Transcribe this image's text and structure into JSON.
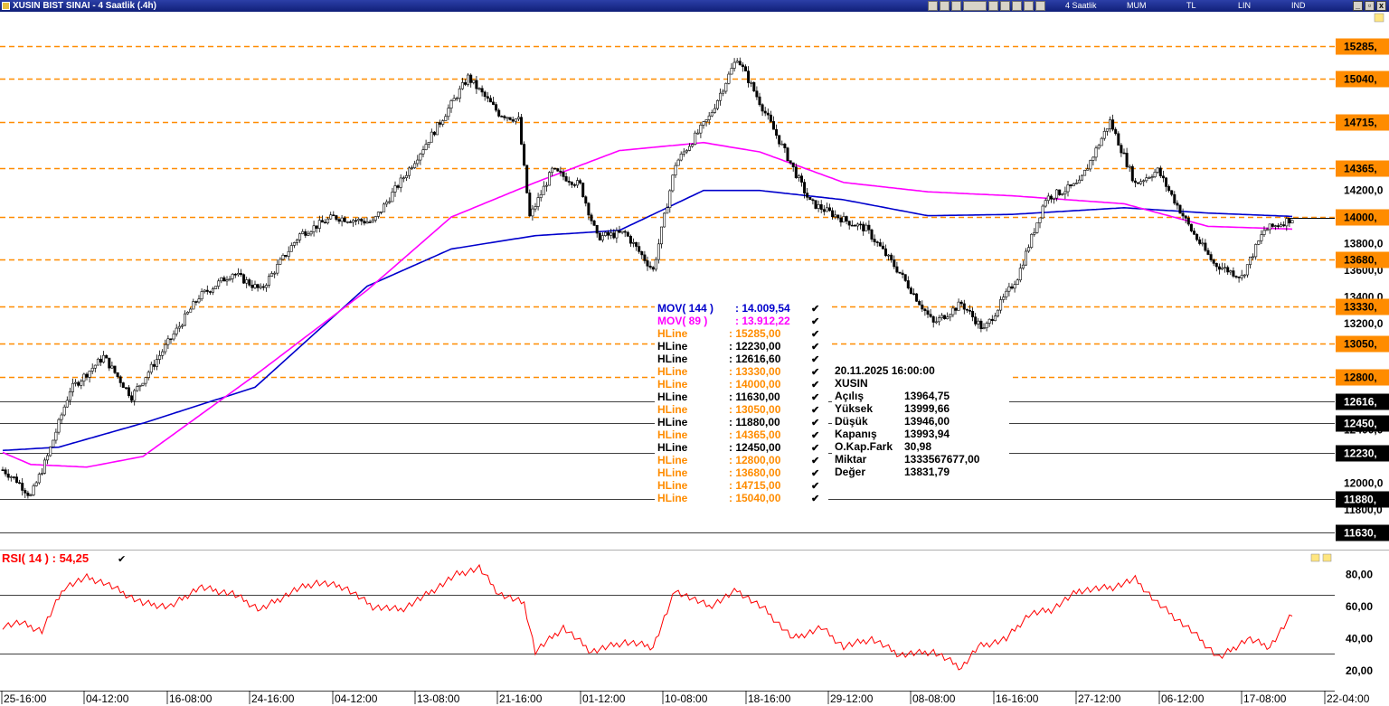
{
  "window": {
    "title": "XUSIN BIST SINAI - 4 Saatlik (.4h)",
    "toolbar_labels": [
      "4 Saatlik",
      "MUM",
      "TL",
      "LIN",
      "IND"
    ]
  },
  "price_axis": {
    "labels": [
      "14200,0",
      "13800,0",
      "13600,0",
      "13400,0",
      "13200,0",
      "12400,0",
      "12000,0",
      "11800,0"
    ]
  },
  "hlines": [
    {
      "label": "15285,",
      "value": 15285,
      "color": "#ff8c00"
    },
    {
      "label": "15040,",
      "value": 15040,
      "color": "#ff8c00"
    },
    {
      "label": "14715,",
      "value": 14715,
      "color": "#ff8c00"
    },
    {
      "label": "14365,",
      "value": 14365,
      "color": "#ff8c00"
    },
    {
      "label": "14000,",
      "value": 14000,
      "color": "#ff8c00"
    },
    {
      "label": "13680,",
      "value": 13680,
      "color": "#ff8c00"
    },
    {
      "label": "13330,",
      "value": 13330,
      "color": "#ff8c00"
    },
    {
      "label": "13050,",
      "value": 13050,
      "color": "#ff8c00"
    },
    {
      "label": "12800,",
      "value": 12800,
      "color": "#ff8c00"
    },
    {
      "label": "12616,",
      "value": 12616.6,
      "color": "#000000"
    },
    {
      "label": "12450,",
      "value": 12450,
      "color": "#000000"
    },
    {
      "label": "12230,",
      "value": 12230,
      "color": "#000000"
    },
    {
      "label": "11880,",
      "value": 11880,
      "color": "#000000"
    },
    {
      "label": "11630,",
      "value": 11630,
      "color": "#000000"
    }
  ],
  "legend": {
    "mov144": {
      "name": "MOV( 144 )",
      "value": ": 14.009,54",
      "color": "#0000cc"
    },
    "mov89": {
      "name": "MOV( 89 )",
      "value": ": 13.912,22",
      "color": "#ff00ff"
    },
    "rows": [
      {
        "name": "HLine",
        "value": ": 15285,00",
        "color": "#ff8c00"
      },
      {
        "name": "HLine",
        "value": ": 12230,00",
        "color": "#000000"
      },
      {
        "name": "HLine",
        "value": ": 12616,60",
        "color": "#000000"
      },
      {
        "name": "HLine",
        "value": ": 13330,00",
        "color": "#ff8c00"
      },
      {
        "name": "HLine",
        "value": ": 14000,00",
        "color": "#ff8c00"
      },
      {
        "name": "HLine",
        "value": ": 11630,00",
        "color": "#000000"
      },
      {
        "name": "HLine",
        "value": ": 13050,00",
        "color": "#ff8c00"
      },
      {
        "name": "HLine",
        "value": ": 11880,00",
        "color": "#000000"
      },
      {
        "name": "HLine",
        "value": ": 14365,00",
        "color": "#ff8c00"
      },
      {
        "name": "HLine",
        "value": ": 12450,00",
        "color": "#000000"
      },
      {
        "name": "HLine",
        "value": ": 12800,00",
        "color": "#ff8c00"
      },
      {
        "name": "HLine",
        "value": ": 13680,00",
        "color": "#ff8c00"
      },
      {
        "name": "HLine",
        "value": ": 14715,00",
        "color": "#ff8c00"
      },
      {
        "name": "HLine",
        "value": ": 15040,00",
        "color": "#ff8c00"
      }
    ]
  },
  "info": {
    "datetime": "20.11.2025  16:00:00",
    "symbol": "XUSIN",
    "rows": [
      {
        "label": "Açılış",
        "value": "13964,75"
      },
      {
        "label": "Yüksek",
        "value": "13999,66"
      },
      {
        "label": "Düşük",
        "value": "13946,00"
      },
      {
        "label": "Kapanış",
        "value": "13993,94"
      },
      {
        "label": "O.Kap.Fark",
        "value": "30,98"
      },
      {
        "label": "Miktar",
        "value": "1333567677,00"
      },
      {
        "label": "Değer",
        "value": "13831,79"
      }
    ]
  },
  "rsi": {
    "label": "RSI( 14 )   : 54,25",
    "axis_labels": [
      "80,00",
      "60,00",
      "40,00",
      "20,00"
    ]
  },
  "time_axis": {
    "labels": [
      "25-16:00",
      "04-12:00",
      "16-08:00",
      "24-16:00",
      "04-12:00",
      "13-08:00",
      "21-16:00",
      "01-12:00",
      "10-08:00",
      "18-16:00",
      "29-12:00",
      "08-08:00",
      "16-16:00",
      "27-12:00",
      "06-12:00",
      "17-08:00",
      "22-04:00"
    ]
  },
  "chart_data": {
    "type": "candlestick",
    "price_keypoints": [
      [
        0,
        12100
      ],
      [
        5,
        12020
      ],
      [
        10,
        11900
      ],
      [
        16,
        12200
      ],
      [
        24,
        12700
      ],
      [
        36,
        12950
      ],
      [
        46,
        12650
      ],
      [
        55,
        12930
      ],
      [
        70,
        13400
      ],
      [
        82,
        13580
      ],
      [
        92,
        13450
      ],
      [
        106,
        13870
      ],
      [
        118,
        14000
      ],
      [
        132,
        13960
      ],
      [
        143,
        14300
      ],
      [
        155,
        14680
      ],
      [
        166,
        15050
      ],
      [
        177,
        14780
      ],
      [
        184,
        14730
      ],
      [
        188,
        14000
      ],
      [
        196,
        14350
      ],
      [
        206,
        14240
      ],
      [
        212,
        13850
      ],
      [
        222,
        13880
      ],
      [
        232,
        13600
      ],
      [
        240,
        14400
      ],
      [
        252,
        14750
      ],
      [
        262,
        15200
      ],
      [
        268,
        14950
      ],
      [
        280,
        14450
      ],
      [
        288,
        14110
      ],
      [
        300,
        13980
      ],
      [
        308,
        13910
      ],
      [
        320,
        13580
      ],
      [
        332,
        13200
      ],
      [
        342,
        13350
      ],
      [
        350,
        13150
      ],
      [
        362,
        13550
      ],
      [
        372,
        14140
      ],
      [
        384,
        14250
      ],
      [
        395,
        14720
      ],
      [
        404,
        14250
      ],
      [
        412,
        14350
      ],
      [
        424,
        13900
      ],
      [
        432,
        13650
      ],
      [
        442,
        13550
      ],
      [
        450,
        13900
      ],
      [
        460,
        13990
      ]
    ],
    "ma144": [
      [
        0,
        12245
      ],
      [
        20,
        12270
      ],
      [
        50,
        12450
      ],
      [
        90,
        12720
      ],
      [
        130,
        13480
      ],
      [
        160,
        13760
      ],
      [
        190,
        13860
      ],
      [
        220,
        13900
      ],
      [
        250,
        14200
      ],
      [
        270,
        14200
      ],
      [
        300,
        14130
      ],
      [
        330,
        14010
      ],
      [
        360,
        14020
      ],
      [
        400,
        14070
      ],
      [
        430,
        14030
      ],
      [
        460,
        14005
      ]
    ],
    "ma89": [
      [
        0,
        12230
      ],
      [
        10,
        12140
      ],
      [
        30,
        12120
      ],
      [
        50,
        12200
      ],
      [
        90,
        12810
      ],
      [
        130,
        13450
      ],
      [
        160,
        14000
      ],
      [
        190,
        14260
      ],
      [
        220,
        14500
      ],
      [
        250,
        14560
      ],
      [
        270,
        14490
      ],
      [
        300,
        14260
      ],
      [
        330,
        14190
      ],
      [
        360,
        14160
      ],
      [
        400,
        14100
      ],
      [
        430,
        13930
      ],
      [
        460,
        13910
      ]
    ],
    "rsi": [
      [
        0,
        48
      ],
      [
        6,
        50
      ],
      [
        14,
        45
      ],
      [
        22,
        72
      ],
      [
        30,
        78
      ],
      [
        36,
        75
      ],
      [
        50,
        62
      ],
      [
        60,
        60
      ],
      [
        70,
        72
      ],
      [
        82,
        68
      ],
      [
        92,
        58
      ],
      [
        104,
        70
      ],
      [
        112,
        75
      ],
      [
        122,
        72
      ],
      [
        132,
        60
      ],
      [
        142,
        58
      ],
      [
        150,
        66
      ],
      [
        162,
        80
      ],
      [
        170,
        84
      ],
      [
        177,
        68
      ],
      [
        186,
        62
      ],
      [
        190,
        32
      ],
      [
        200,
        47
      ],
      [
        210,
        32
      ],
      [
        222,
        38
      ],
      [
        232,
        35
      ],
      [
        240,
        70
      ],
      [
        252,
        60
      ],
      [
        262,
        70
      ],
      [
        272,
        58
      ],
      [
        282,
        40
      ],
      [
        292,
        47
      ],
      [
        300,
        35
      ],
      [
        310,
        40
      ],
      [
        320,
        30
      ],
      [
        332,
        32
      ],
      [
        342,
        22
      ],
      [
        348,
        35
      ],
      [
        358,
        40
      ],
      [
        366,
        55
      ],
      [
        374,
        58
      ],
      [
        384,
        70
      ],
      [
        396,
        72
      ],
      [
        404,
        77
      ],
      [
        412,
        62
      ],
      [
        424,
        45
      ],
      [
        434,
        28
      ],
      [
        444,
        40
      ],
      [
        452,
        35
      ],
      [
        460,
        55
      ]
    ],
    "rsi_range": [
      10,
      92
    ],
    "price_range": [
      11520,
      15530
    ],
    "bars": 461
  }
}
